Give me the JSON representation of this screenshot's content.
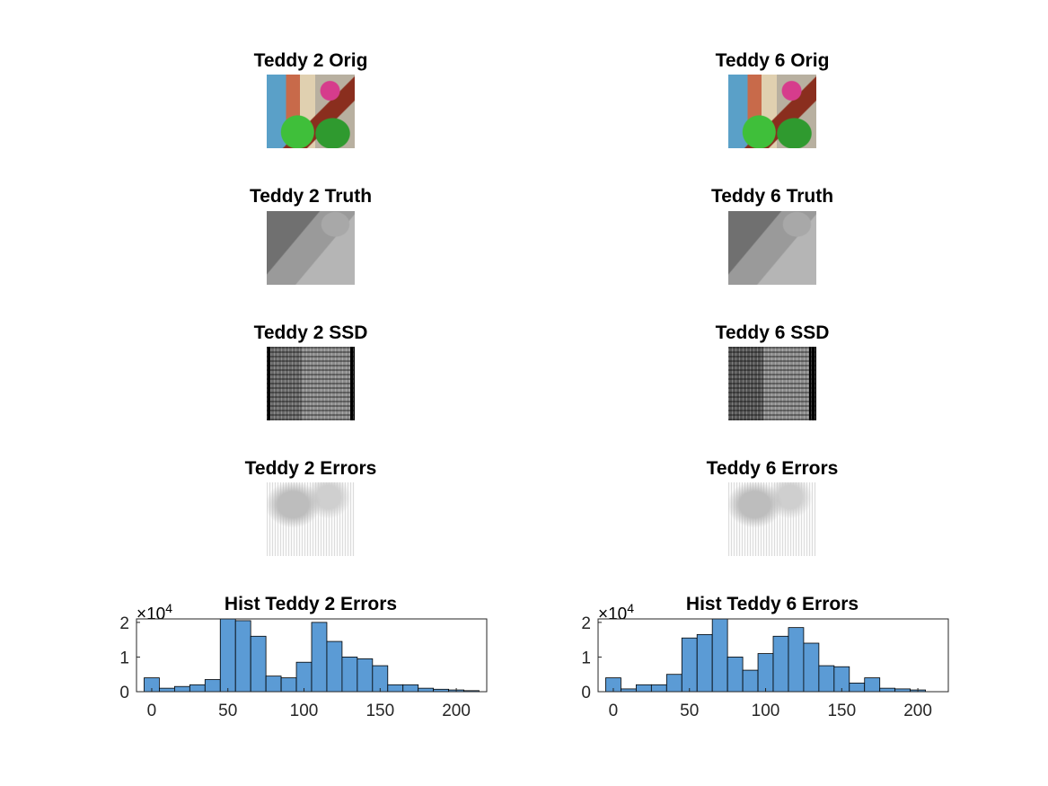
{
  "panels": [
    {
      "title": "Teddy 2 Orig"
    },
    {
      "title": "Teddy 6 Orig"
    },
    {
      "title": "Teddy 2 Truth"
    },
    {
      "title": "Teddy 6 Truth"
    },
    {
      "title": "Teddy 2 SSD"
    },
    {
      "title": "Teddy 6 SSD"
    },
    {
      "title": "Teddy 2 Errors"
    },
    {
      "title": "Teddy 6 Errors"
    }
  ],
  "chart_data": [
    {
      "type": "bar",
      "title": "Hist Teddy 2 Errors",
      "xlabel": "",
      "ylabel": "",
      "y_multiplier": "×10",
      "y_exponent": "4",
      "xlim": [
        -10,
        220
      ],
      "ylim": [
        0,
        2.1
      ],
      "xticks": [
        "0",
        "50",
        "100",
        "150",
        "200"
      ],
      "yticks": [
        "0",
        "1",
        "2"
      ],
      "bar_color": "#5b9bd5",
      "x": [
        0,
        10,
        20,
        30,
        40,
        50,
        60,
        70,
        80,
        90,
        100,
        110,
        120,
        130,
        140,
        150,
        160,
        170,
        180,
        190,
        200,
        210
      ],
      "values": [
        0.4,
        0.1,
        0.15,
        0.2,
        0.35,
        2.1,
        2.05,
        1.6,
        0.45,
        0.4,
        0.85,
        2.0,
        1.45,
        1.0,
        0.95,
        0.75,
        0.2,
        0.2,
        0.1,
        0.07,
        0.05,
        0.03
      ],
      "bin_width": 10
    },
    {
      "type": "bar",
      "title": "Hist Teddy 6 Errors",
      "xlabel": "",
      "ylabel": "",
      "y_multiplier": "×10",
      "y_exponent": "4",
      "xlim": [
        -10,
        220
      ],
      "ylim": [
        0,
        2.1
      ],
      "xticks": [
        "0",
        "50",
        "100",
        "150",
        "200"
      ],
      "yticks": [
        "0",
        "1",
        "2"
      ],
      "bar_color": "#5b9bd5",
      "x": [
        0,
        10,
        20,
        30,
        40,
        50,
        60,
        70,
        80,
        90,
        100,
        110,
        120,
        130,
        140,
        150,
        160,
        170,
        180,
        190,
        200
      ],
      "values": [
        0.4,
        0.08,
        0.2,
        0.2,
        0.5,
        1.55,
        1.65,
        2.1,
        1.0,
        0.62,
        1.1,
        1.6,
        1.85,
        1.4,
        0.75,
        0.72,
        0.25,
        0.4,
        0.1,
        0.08,
        0.05
      ],
      "bin_width": 10
    }
  ]
}
